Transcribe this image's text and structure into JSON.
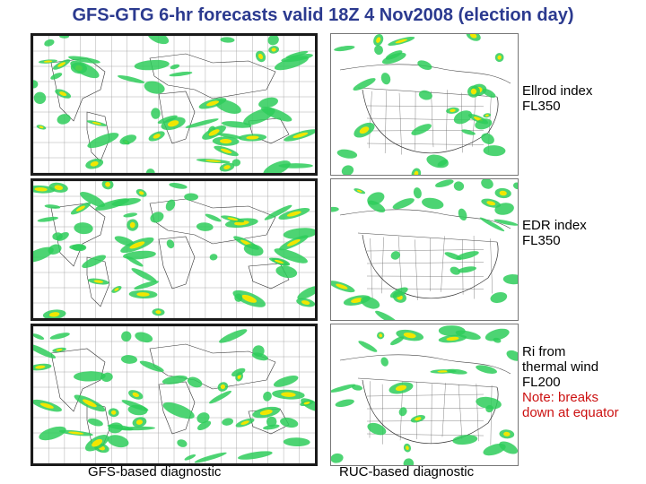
{
  "title": "GFS-GTG 6-hr forecasts valid 18Z 4 Nov2008 (election day)",
  "rows": [
    {
      "label_lines": [
        "Ellrod index",
        "FL350"
      ],
      "note_lines": []
    },
    {
      "label_lines": [
        "EDR index",
        "FL350"
      ],
      "note_lines": []
    },
    {
      "label_lines": [
        "Ri from",
        "thermal wind",
        "FL200"
      ],
      "note_lines": [
        "Note: breaks",
        "down at equator"
      ]
    }
  ],
  "footer": {
    "global": "GFS-based diagnostic",
    "regional": "RUC-based diagnostic"
  },
  "colors": {
    "title": "#2b3a8f",
    "turbulence_light": "#2ecc5a",
    "turbulence_moderate": "#f2e600",
    "note": "#cc1111"
  }
}
